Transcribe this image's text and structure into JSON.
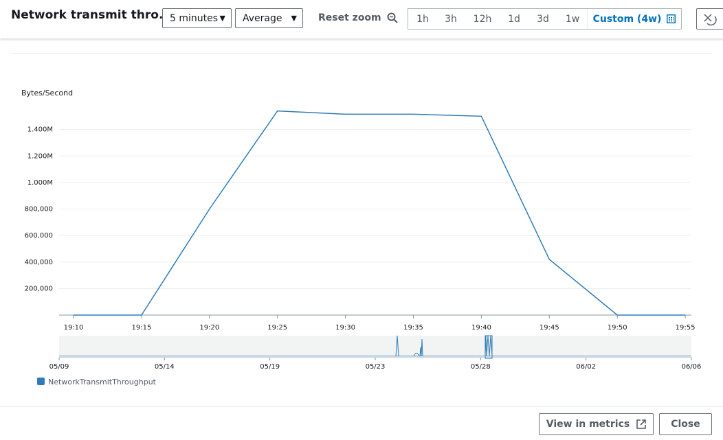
{
  "header": {
    "title": "Network transmit thro...",
    "period": "5 minutes",
    "statistic": "Average",
    "reset_zoom": "Reset zoom",
    "ranges": [
      "1h",
      "3h",
      "12h",
      "1d",
      "3d",
      "1w",
      "Custom (4w)"
    ]
  },
  "chart_data": {
    "type": "line",
    "ylabel": "Bytes/Second",
    "x": [
      "19:10",
      "19:15",
      "19:20",
      "19:25",
      "19:30",
      "19:35",
      "19:40",
      "19:45",
      "19:50",
      "19:55"
    ],
    "series": [
      {
        "name": "NetworkTransmitThroughput",
        "color": "#2e7bb8",
        "values": [
          0,
          0,
          800000,
          1540000,
          1515000,
          1515000,
          1500000,
          420000,
          0,
          0
        ]
      }
    ],
    "ylim": [
      0,
      1600000
    ],
    "yticks": [
      {
        "value": 200000,
        "label": "200,000"
      },
      {
        "value": 400000,
        "label": "400,000"
      },
      {
        "value": 600000,
        "label": "600,000"
      },
      {
        "value": 800000,
        "label": "800,000"
      },
      {
        "value": 1000000,
        "label": "1.000M"
      },
      {
        "value": 1200000,
        "label": "1.200M"
      },
      {
        "value": 1400000,
        "label": "1.400M"
      }
    ],
    "grid": true
  },
  "navigator": {
    "xticks": [
      "05/09",
      "05/14",
      "05/19",
      "05/23",
      "05/28",
      "06/02",
      "06/06"
    ]
  },
  "footer": {
    "view": "View in metrics",
    "close": "Close"
  }
}
